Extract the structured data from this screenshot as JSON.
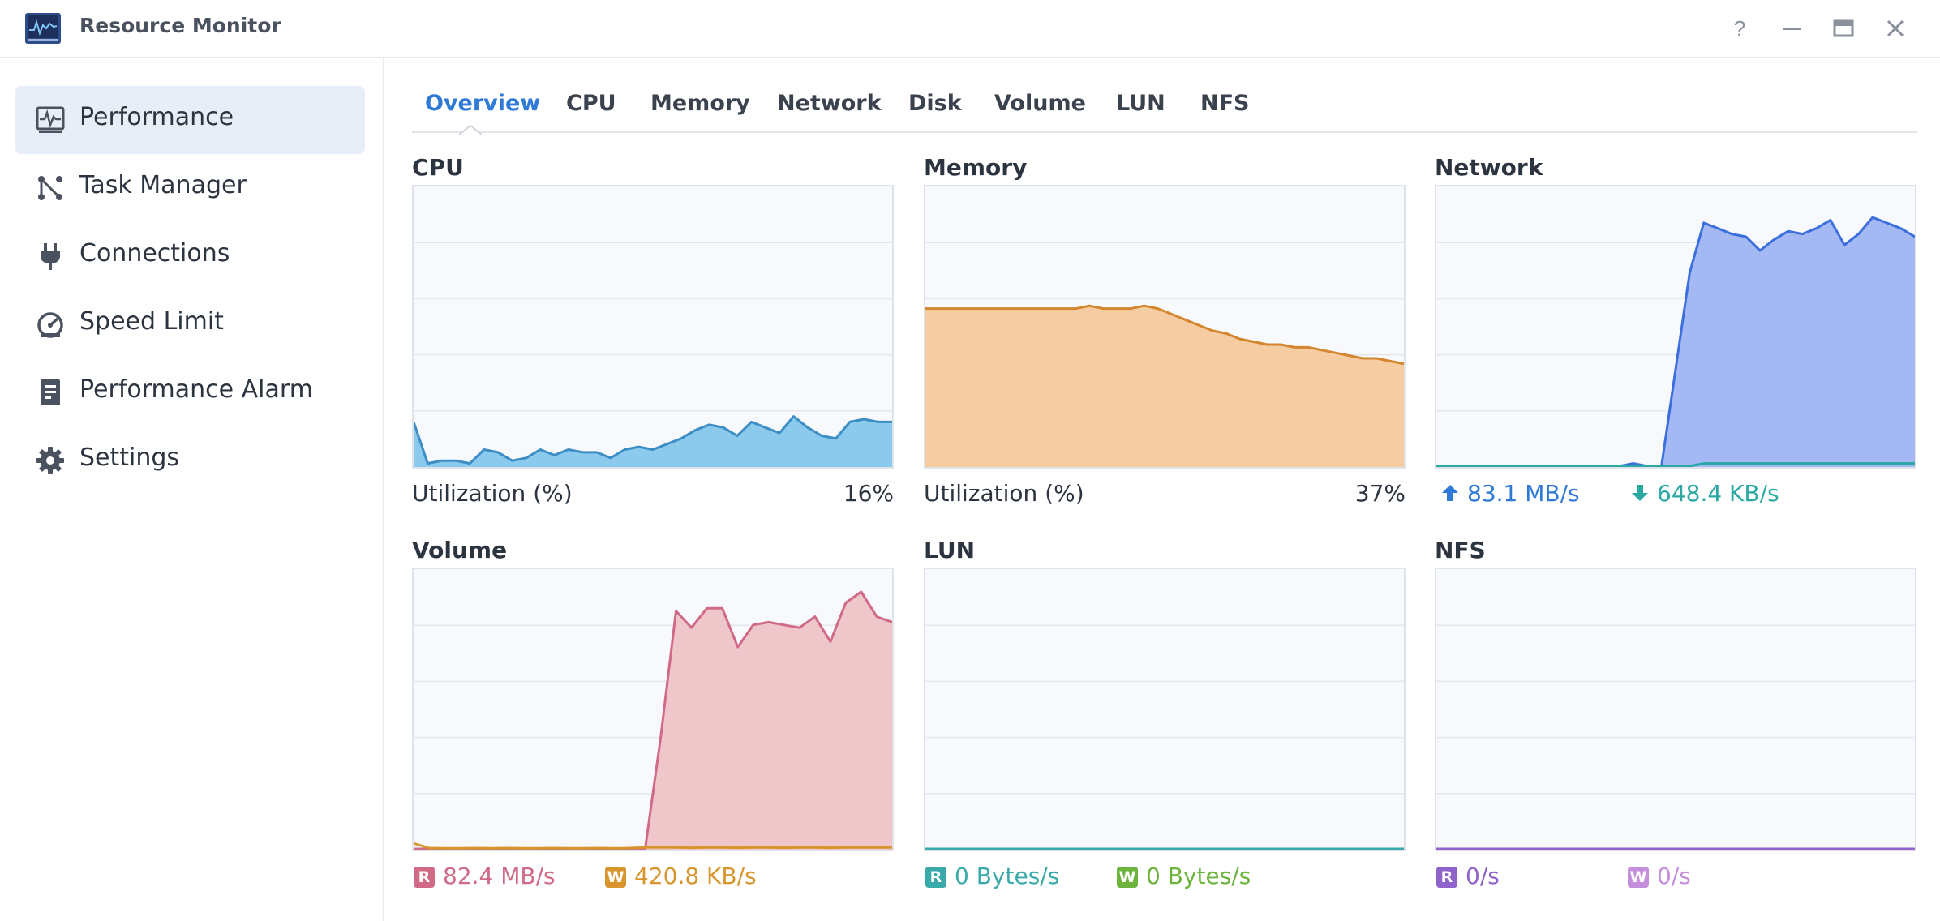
{
  "app": {
    "title": "Resource Monitor"
  },
  "window_controls": [
    "help-icon",
    "minimize-icon",
    "maximize-icon",
    "close-icon"
  ],
  "sidebar": {
    "items": [
      {
        "label": "Performance",
        "icon": "pulse-icon",
        "active": true
      },
      {
        "label": "Task Manager",
        "icon": "task-manager-icon",
        "active": false
      },
      {
        "label": "Connections",
        "icon": "plug-icon",
        "active": false
      },
      {
        "label": "Speed Limit",
        "icon": "gauge-icon",
        "active": false
      },
      {
        "label": "Performance Alarm",
        "icon": "alarm-icon",
        "active": false
      },
      {
        "label": "Settings",
        "icon": "gear-icon",
        "active": false
      }
    ]
  },
  "tabs": [
    {
      "label": "Overview",
      "active": true
    },
    {
      "label": "CPU"
    },
    {
      "label": "Memory"
    },
    {
      "label": "Network"
    },
    {
      "label": "Disk"
    },
    {
      "label": "Volume"
    },
    {
      "label": "LUN"
    },
    {
      "label": "NFS"
    }
  ],
  "panels": {
    "cpu": {
      "title": "CPU",
      "metric_label": "Utilization  (%)",
      "value": "16%",
      "color": "#3d8ec4",
      "fill": "#8ccaed"
    },
    "memory": {
      "title": "Memory",
      "metric_label": "Utilization  (%)",
      "value": "37%",
      "color": "#d4862e",
      "fill": "#f6cda3"
    },
    "network": {
      "title": "Network",
      "upload": "83.1 MB/s",
      "download": "648.4 KB/s",
      "upload_color": "#2f7ad6",
      "download_color": "#2aa8a2",
      "fill": "#a4b8f4",
      "line": "#3a6fdc"
    },
    "volume": {
      "title": "Volume",
      "read_badge": "R",
      "write_badge": "W",
      "read": "82.4 MB/s",
      "write": "420.8 KB/s",
      "read_color": "#d06a86",
      "write_color": "#d9952d",
      "fill": "#efc6c9"
    },
    "lun": {
      "title": "LUN",
      "read_badge": "R",
      "write_badge": "W",
      "read": "0 Bytes/s",
      "write": "0 Bytes/s",
      "read_color": "#3aa9aa",
      "write_color": "#6cb43c"
    },
    "nfs": {
      "title": "NFS",
      "read_badge": "R",
      "write_badge": "W",
      "read": "0/s",
      "write": "0/s",
      "read_color": "#8f63c9",
      "write_color": "#c58fdb"
    }
  },
  "chart_data": [
    {
      "type": "area",
      "title": "CPU",
      "ylabel": "Utilization  (%)",
      "ylim": [
        0,
        100
      ],
      "series": [
        {
          "values": [
            16,
            1,
            2,
            2,
            1,
            6,
            5,
            2,
            3,
            6,
            4,
            6,
            5,
            5,
            3,
            6,
            7,
            6,
            8,
            10,
            13,
            15,
            14,
            11,
            16,
            14,
            12,
            18,
            14,
            11,
            10,
            16,
            17,
            16,
            16
          ]
        }
      ]
    },
    {
      "type": "area",
      "title": "Memory",
      "ylabel": "Utilization  (%)",
      "ylim": [
        0,
        100
      ],
      "series": [
        {
          "values": [
            57,
            57,
            57,
            57,
            57,
            57,
            57,
            57,
            57,
            57,
            57,
            57,
            58,
            57,
            57,
            57,
            58,
            57,
            55,
            53,
            51,
            49,
            48,
            46,
            45,
            44,
            44,
            43,
            43,
            42,
            41,
            40,
            39,
            39,
            38,
            37
          ]
        }
      ]
    },
    {
      "type": "area",
      "title": "Network",
      "series": [
        {
          "name": "83.1 MB/s",
          "values": [
            0,
            0,
            0,
            0,
            0,
            0,
            0,
            0,
            0,
            0,
            0,
            0,
            0,
            0,
            1,
            0,
            0,
            35,
            70,
            88,
            86,
            84,
            83,
            78,
            82,
            85,
            84,
            86,
            89,
            80,
            84,
            90,
            88,
            86,
            83
          ]
        },
        {
          "name": "648.4 KB/s",
          "values": [
            0,
            0,
            0,
            0,
            0,
            0,
            0,
            0,
            0,
            0,
            0,
            0,
            0,
            0,
            0,
            0,
            0,
            0,
            0,
            1,
            1,
            1,
            1,
            1,
            1,
            1,
            1,
            1,
            1,
            1,
            1,
            1,
            1,
            1,
            1
          ]
        }
      ]
    },
    {
      "type": "area",
      "title": "Volume",
      "series": [
        {
          "name": "R",
          "values": [
            0,
            0,
            0,
            0,
            0,
            0,
            0,
            0,
            0,
            0,
            0,
            0,
            0,
            0,
            0,
            0,
            40,
            86,
            80,
            87,
            87,
            73,
            81,
            82,
            81,
            80,
            84,
            75,
            89,
            93,
            84,
            82
          ]
        },
        {
          "name": "W",
          "values": [
            2,
            0.3,
            0.2,
            0.2,
            0.3,
            0.2,
            0.3,
            0.2,
            0.2,
            0.3,
            0.2,
            0.2,
            0.3,
            0.2,
            0.3,
            0.5,
            0.6,
            0.5,
            0.4,
            0.5,
            0.5,
            0.4,
            0.5,
            0.5,
            0.4,
            0.5,
            0.5,
            0.4,
            0.5,
            0.5,
            0.5,
            0.5
          ]
        }
      ]
    },
    {
      "type": "area",
      "title": "LUN",
      "series": [
        {
          "name": "R",
          "values": [
            0,
            0,
            0,
            0,
            0,
            0,
            0,
            0,
            0,
            0
          ]
        },
        {
          "name": "W",
          "values": [
            0,
            0,
            0,
            0,
            0,
            0,
            0,
            0,
            0,
            0
          ]
        }
      ]
    },
    {
      "type": "area",
      "title": "NFS",
      "series": [
        {
          "name": "R",
          "values": [
            0,
            0,
            0,
            0,
            0,
            0,
            0,
            0,
            0,
            0
          ]
        },
        {
          "name": "W",
          "values": [
            0,
            0,
            0,
            0,
            0,
            0,
            0,
            0,
            0,
            0
          ]
        }
      ]
    }
  ]
}
